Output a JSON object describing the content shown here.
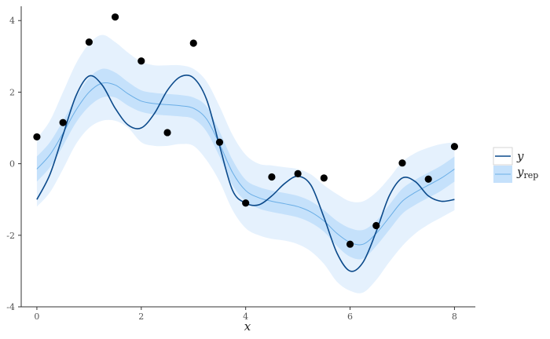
{
  "chart_data": {
    "type": "line",
    "xlabel": "x",
    "ylabel": "",
    "xlim": [
      -0.3,
      8.4
    ],
    "ylim": [
      -4,
      4.4
    ],
    "x_ticks": [
      0,
      2,
      4,
      6,
      8
    ],
    "y_ticks": [
      -4,
      -2,
      0,
      2,
      4
    ],
    "grid": false,
    "legend_position": "right",
    "series": [
      {
        "name": "y",
        "kind": "line",
        "color": "#0b4a8b",
        "x": [
          0,
          0.25,
          0.5,
          0.75,
          1,
          1.25,
          1.5,
          1.75,
          2,
          2.25,
          2.5,
          2.75,
          3,
          3.25,
          3.5,
          3.75,
          4,
          4.25,
          4.5,
          4.75,
          5,
          5.25,
          5.5,
          5.75,
          6,
          6.25,
          6.5,
          6.75,
          7,
          7.25,
          7.5,
          7.75,
          8
        ],
        "values": [
          -1.0,
          -0.3,
          0.8,
          1.9,
          2.45,
          2.2,
          1.55,
          1.08,
          1.0,
          1.4,
          2.05,
          2.43,
          2.4,
          1.8,
          0.5,
          -0.75,
          -1.1,
          -1.15,
          -0.9,
          -0.55,
          -0.35,
          -0.6,
          -1.5,
          -2.5,
          -3.0,
          -2.75,
          -1.9,
          -0.9,
          -0.4,
          -0.5,
          -0.9,
          -1.05,
          -1.0
        ]
      },
      {
        "name": "y",
        "subscript": "rep",
        "kind": "ribbon",
        "color": "#6aaee6",
        "x": [
          0,
          0.25,
          0.5,
          0.75,
          1,
          1.25,
          1.5,
          1.75,
          2,
          2.25,
          2.5,
          2.75,
          3,
          3.25,
          3.5,
          3.75,
          4,
          4.25,
          4.5,
          4.75,
          5,
          5.25,
          5.5,
          5.75,
          6,
          6.25,
          6.5,
          6.75,
          7,
          7.25,
          7.5,
          7.75,
          8
        ],
        "values": [
          -0.15,
          0.25,
          0.85,
          1.5,
          2.0,
          2.25,
          2.2,
          1.95,
          1.75,
          1.68,
          1.65,
          1.62,
          1.55,
          1.25,
          0.55,
          -0.25,
          -0.75,
          -0.95,
          -1.05,
          -1.12,
          -1.2,
          -1.35,
          -1.6,
          -1.95,
          -2.2,
          -2.25,
          -1.95,
          -1.5,
          -1.05,
          -0.8,
          -0.6,
          -0.4,
          -0.15
        ],
        "inner_low": [
          -0.5,
          -0.1,
          0.5,
          1.15,
          1.6,
          1.85,
          1.85,
          1.62,
          1.45,
          1.38,
          1.35,
          1.32,
          1.25,
          0.9,
          0.2,
          -0.6,
          -1.05,
          -1.25,
          -1.35,
          -1.42,
          -1.5,
          -1.65,
          -1.9,
          -2.3,
          -2.6,
          -2.65,
          -2.3,
          -1.85,
          -1.4,
          -1.15,
          -0.95,
          -0.75,
          -0.5
        ],
        "inner_high": [
          0.2,
          0.6,
          1.2,
          1.85,
          2.4,
          2.65,
          2.55,
          2.28,
          2.05,
          1.98,
          1.95,
          1.92,
          1.85,
          1.6,
          0.9,
          0.1,
          -0.45,
          -0.65,
          -0.75,
          -0.82,
          -0.9,
          -1.05,
          -1.3,
          -1.6,
          -1.8,
          -1.85,
          -1.6,
          -1.15,
          -0.7,
          -0.45,
          -0.25,
          -0.05,
          0.2
        ],
        "outer_low": [
          -1.2,
          -0.8,
          -0.15,
          0.55,
          1.0,
          1.2,
          1.2,
          1.0,
          0.6,
          0.5,
          0.5,
          0.55,
          0.5,
          0.1,
          -0.5,
          -1.3,
          -1.8,
          -2.0,
          -2.1,
          -2.15,
          -2.25,
          -2.45,
          -2.8,
          -3.3,
          -3.55,
          -3.6,
          -3.25,
          -2.75,
          -2.3,
          -1.95,
          -1.7,
          -1.5,
          -1.3
        ],
        "outer_high": [
          0.7,
          1.2,
          2.0,
          2.8,
          3.35,
          3.6,
          3.4,
          3.1,
          2.85,
          2.75,
          2.75,
          2.75,
          2.65,
          2.3,
          1.6,
          0.8,
          0.25,
          0.0,
          -0.05,
          -0.1,
          -0.15,
          -0.3,
          -0.6,
          -0.85,
          -1.05,
          -1.05,
          -0.8,
          -0.4,
          0.05,
          0.3,
          0.45,
          0.55,
          0.6
        ]
      },
      {
        "name": "",
        "kind": "points",
        "color": "#000000",
        "x": [
          0,
          0.5,
          1,
          1.5,
          2,
          2.5,
          3,
          3.5,
          4,
          4.5,
          5,
          5.5,
          6,
          6.5,
          7,
          7.5,
          8
        ],
        "values": [
          0.75,
          1.15,
          3.4,
          4.1,
          2.87,
          0.87,
          3.37,
          0.6,
          -1.1,
          -0.37,
          -0.28,
          -0.4,
          -2.25,
          -1.73,
          0.02,
          -0.43,
          0.48
        ]
      }
    ],
    "colors": {
      "outer_band": "#e5f1fd",
      "inner_band": "#c5e1fb",
      "axis": "#333333"
    }
  }
}
